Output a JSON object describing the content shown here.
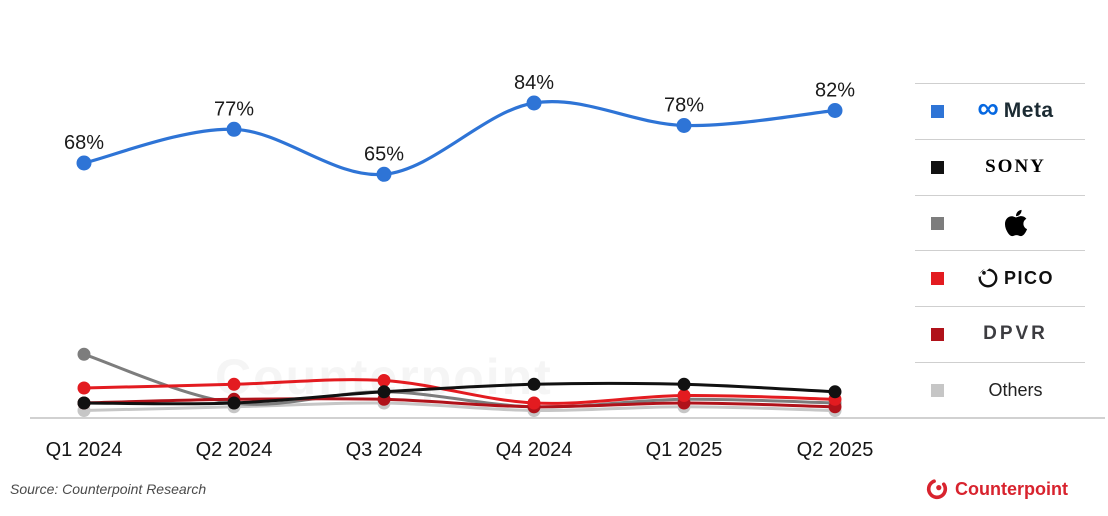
{
  "chart_data": {
    "type": "line",
    "title": "",
    "xlabel": "",
    "ylabel": "",
    "unit": "%",
    "ylim": [
      0,
      100
    ],
    "grid": false,
    "legend_position": "right",
    "categories": [
      "Q1 2024",
      "Q2 2024",
      "Q3 2024",
      "Q4 2024",
      "Q1 2025",
      "Q2 2025"
    ],
    "series": [
      {
        "name": "Others",
        "color": "#c6c6c6",
        "values": [
          2,
          3,
          4,
          2,
          3,
          2
        ],
        "labels_shown": false
      },
      {
        "name": "Apple",
        "color": "#7d7d7d",
        "values": [
          17,
          4,
          7,
          3,
          5,
          4
        ],
        "labels_shown": false
      },
      {
        "name": "DPVR",
        "color": "#b0121a",
        "values": [
          4,
          5,
          5,
          3,
          4,
          3
        ],
        "labels_shown": false
      },
      {
        "name": "PICO",
        "color": "#e31b20",
        "values": [
          8,
          9,
          10,
          4,
          6,
          5
        ],
        "labels_shown": false
      },
      {
        "name": "SONY",
        "color": "#111111",
        "values": [
          4,
          4,
          7,
          9,
          9,
          7
        ],
        "labels_shown": false
      },
      {
        "name": "Meta",
        "color": "#2e74d6",
        "values": [
          68,
          77,
          65,
          84,
          78,
          82
        ],
        "labels_shown": true,
        "point_labels": [
          "68%",
          "77%",
          "65%",
          "84%",
          "78%",
          "82%"
        ]
      }
    ]
  },
  "legend": {
    "items": [
      {
        "label": "Meta",
        "icon": "meta-infinity-logo",
        "color": "#2e74d6"
      },
      {
        "label": "SONY",
        "icon": "sony-wordmark",
        "color": "#111111"
      },
      {
        "label": "Apple",
        "icon": "apple-logo",
        "color": "#7d7d7d"
      },
      {
        "label": "PICO",
        "icon": "pico-logo",
        "color": "#e31b20"
      },
      {
        "label": "DPVR",
        "icon": "dpvr-wordmark",
        "color": "#b0121a"
      },
      {
        "label": "Others",
        "icon": "none",
        "color": "#c6c6c6"
      }
    ]
  },
  "footer": {
    "source": "Source: Counterpoint Research",
    "brand": "Counterpoint",
    "brand_color": "#d8232e"
  },
  "watermark": "Counterpoint"
}
